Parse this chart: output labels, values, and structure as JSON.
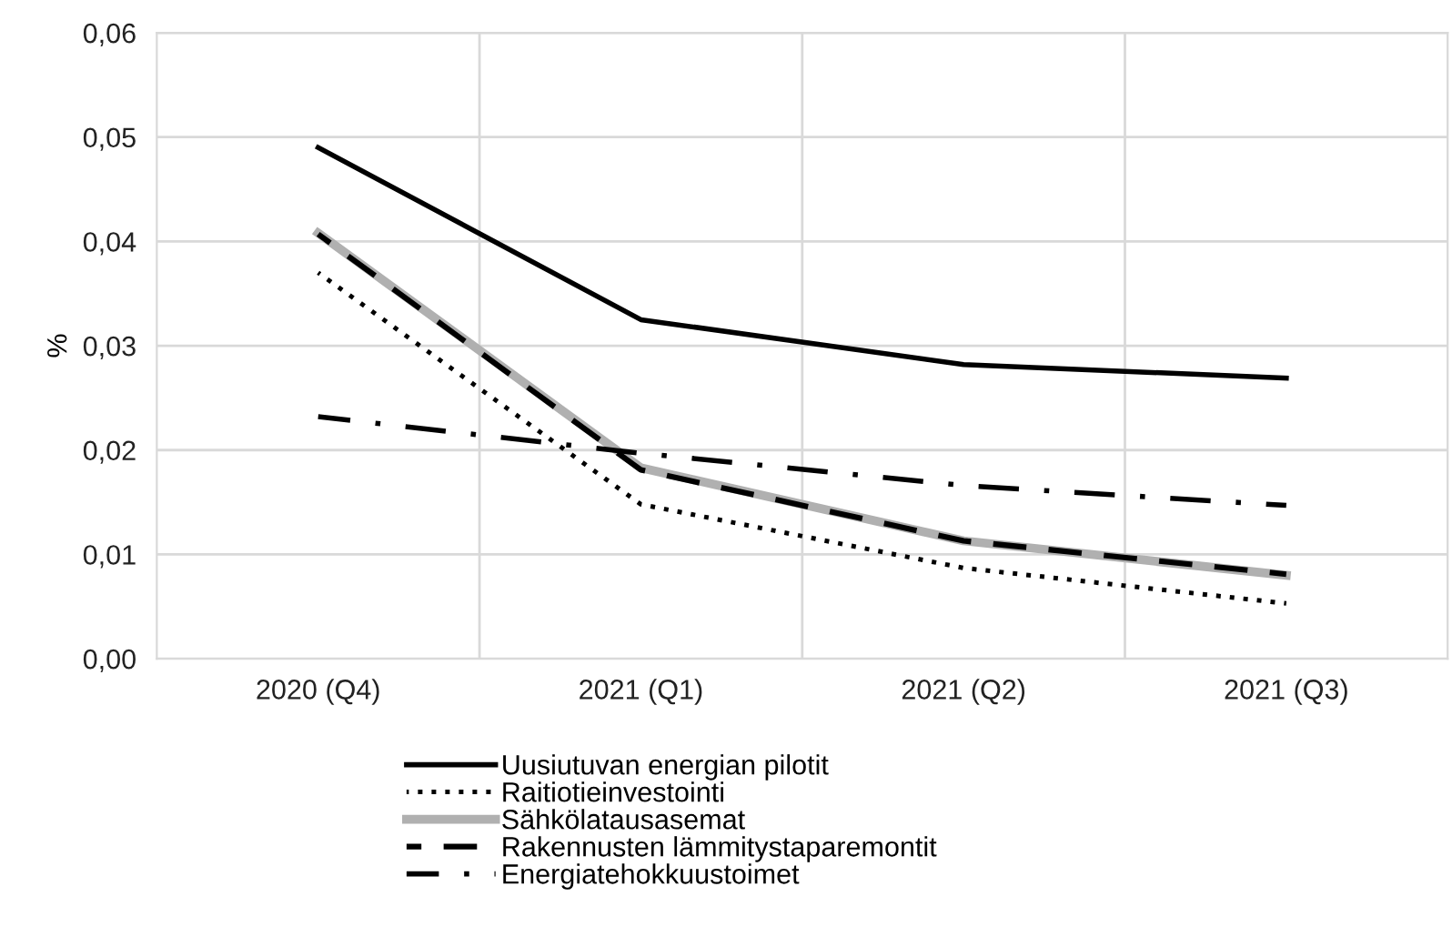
{
  "chart_data": {
    "type": "line",
    "ylabel": "%",
    "categories": [
      "2020 (Q4)",
      "2021 (Q1)",
      "2021 (Q2)",
      "2021 (Q3)"
    ],
    "ylim": [
      0,
      0.06
    ],
    "yticks": [
      {
        "value": 0,
        "label": "0,00"
      },
      {
        "value": 0.01,
        "label": "0,01"
      },
      {
        "value": 0.02,
        "label": "0,02"
      },
      {
        "value": 0.03,
        "label": "0,03"
      },
      {
        "value": 0.04,
        "label": "0,04"
      },
      {
        "value": 0.05,
        "label": "0,05"
      },
      {
        "value": 0.06,
        "label": "0,06"
      }
    ],
    "grid": true,
    "legend": "bottom",
    "marker": "none",
    "series": [
      {
        "name": "Uusiutuvan energian pilotit",
        "color": "#000000",
        "line_style": "solid",
        "values": [
          0.049,
          0.0325,
          0.0282,
          0.0269
        ]
      },
      {
        "name": "Raitiotieinvestointi",
        "color": "#000000",
        "line_style": "dotted",
        "values": [
          0.037,
          0.0148,
          0.0087,
          0.0053
        ]
      },
      {
        "name": "Sähkölatausasemat",
        "color": "#b0b0b0",
        "line_style": "solid",
        "values": [
          0.0408,
          0.0183,
          0.0113,
          0.008
        ]
      },
      {
        "name": "Rakennusten lämmitystaparemontit",
        "color": "#000000",
        "line_style": "dashed",
        "values": [
          0.0407,
          0.0181,
          0.0113,
          0.0081
        ]
      },
      {
        "name": "Energiatehokkuustoimet",
        "color": "#000000",
        "line_style": "dashdot",
        "values": [
          0.0232,
          0.0197,
          0.0166,
          0.0147
        ]
      }
    ]
  }
}
